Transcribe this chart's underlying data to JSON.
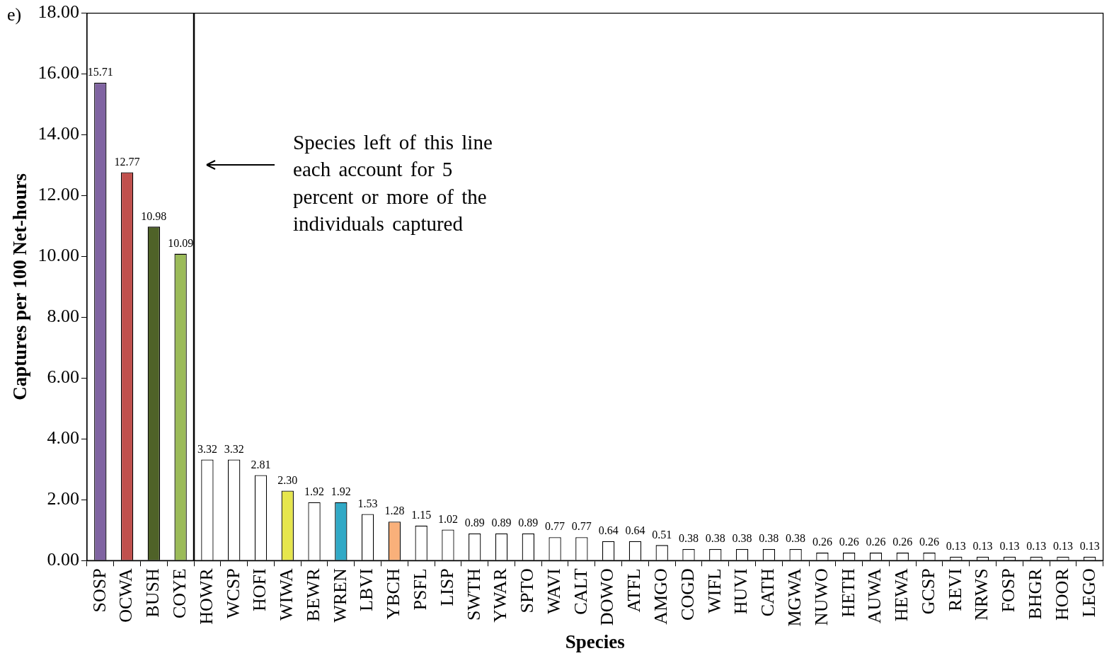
{
  "chart_data": {
    "type": "bar",
    "xlabel": "Species",
    "ylabel": "Captures per 100 Net-hours",
    "categories": [
      "SOSP",
      "OCWA",
      "BUSH",
      "COYE",
      "HOWR",
      "WCSP",
      "HOFI",
      "WIWA",
      "BEWR",
      "WREN",
      "LBVI",
      "YBCH",
      "PSFL",
      "LISP",
      "SWTH",
      "YWAR",
      "SPTO",
      "WAVI",
      "CALT",
      "DOWO",
      "ATFL",
      "AMGO",
      "COGD",
      "WIFL",
      "HUVI",
      "CATH",
      "MGWA",
      "NUWO",
      "HETH",
      "AUWA",
      "HEWA",
      "GCSP",
      "REVI",
      "NRWS",
      "FOSP",
      "BHGR",
      "HOOR",
      "LEGO"
    ],
    "values": [
      15.71,
      12.77,
      10.98,
      10.09,
      3.32,
      3.32,
      2.81,
      2.3,
      1.92,
      1.92,
      1.53,
      1.28,
      1.15,
      1.02,
      0.89,
      0.89,
      0.89,
      0.77,
      0.77,
      0.64,
      0.64,
      0.51,
      0.38,
      0.38,
      0.38,
      0.38,
      0.38,
      0.26,
      0.26,
      0.26,
      0.26,
      0.26,
      0.13,
      0.13,
      0.13,
      0.13,
      0.13,
      0.13
    ],
    "value_labels": [
      "15.71",
      "12.77",
      "10.98",
      "10.09",
      "3.32",
      "3.32",
      "2.81",
      "2.30",
      "1.92",
      "1.92",
      "1.53",
      "1.28",
      "1.15",
      "1.02",
      "0.89",
      "0.89",
      "0.89",
      "0.77",
      "0.77",
      "0.64",
      "0.64",
      "0.51",
      "0.38",
      "0.38",
      "0.38",
      "0.38",
      "0.38",
      "0.26",
      "0.26",
      "0.26",
      "0.26",
      "0.26",
      "0.13",
      "0.13",
      "0.13",
      "0.13",
      "0.13",
      "0.13"
    ],
    "colors": [
      "#8064a2",
      "#c0504d",
      "#4f6228",
      "#9bbb59",
      "#ffffff",
      "#ffffff",
      "#ffffff",
      "#e6e64d",
      "#ffffff",
      "#31a9c6",
      "#ffffff",
      "#f9b07a",
      "#ffffff",
      "#ffffff",
      "#ffffff",
      "#ffffff",
      "#ffffff",
      "#ffffff",
      "#ffffff",
      "#ffffff",
      "#ffffff",
      "#ffffff",
      "#ffffff",
      "#ffffff",
      "#ffffff",
      "#ffffff",
      "#ffffff",
      "#ffffff",
      "#ffffff",
      "#ffffff",
      "#ffffff",
      "#ffffff",
      "#ffffff",
      "#ffffff",
      "#ffffff",
      "#ffffff",
      "#ffffff",
      "#ffffff"
    ],
    "ylim": [
      0,
      18
    ],
    "yticks": [
      {
        "value": 0,
        "label": "0.00"
      },
      {
        "value": 2,
        "label": "2.00"
      },
      {
        "value": 4,
        "label": "4.00"
      },
      {
        "value": 6,
        "label": "6.00"
      },
      {
        "value": 8,
        "label": "8.00"
      },
      {
        "value": 10,
        "label": "10.00"
      },
      {
        "value": 12,
        "label": "12.00"
      },
      {
        "value": 14,
        "label": "14.00"
      },
      {
        "value": 16,
        "label": "16.00"
      },
      {
        "value": 18,
        "label": "18.00"
      }
    ],
    "annotations": [
      "e)",
      "Species left of this line each account for 5 percent or more of the individuals captured"
    ]
  }
}
